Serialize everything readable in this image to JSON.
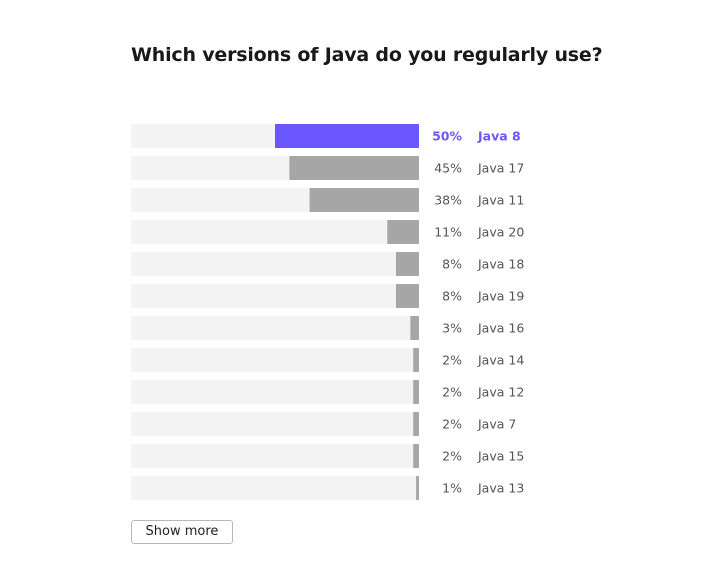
{
  "title": "Which versions of Java do you regularly use?",
  "show_more_label": "Show more",
  "colors": {
    "highlight": "#6b57ff",
    "bar": "#a6a6a6",
    "track": "#f3f3f3",
    "label": "#555555"
  },
  "chart_data": {
    "type": "bar",
    "orientation": "horizontal",
    "categories": [
      "Java 8",
      "Java 17",
      "Java 11",
      "Java 20",
      "Java 18",
      "Java 19",
      "Java 16",
      "Java 14",
      "Java 12",
      "Java 7",
      "Java 15",
      "Java 13"
    ],
    "values": [
      50,
      45,
      38,
      11,
      8,
      8,
      3,
      2,
      2,
      2,
      2,
      1
    ],
    "value_labels": [
      "50%",
      "45%",
      "38%",
      "11%",
      "8%",
      "8%",
      "3%",
      "2%",
      "2%",
      "2%",
      "2%",
      "1%"
    ],
    "unit": "%",
    "xlim": [
      0,
      100
    ],
    "highlighted_category": "Java 8",
    "title": "Which versions of Java do you regularly use?"
  }
}
